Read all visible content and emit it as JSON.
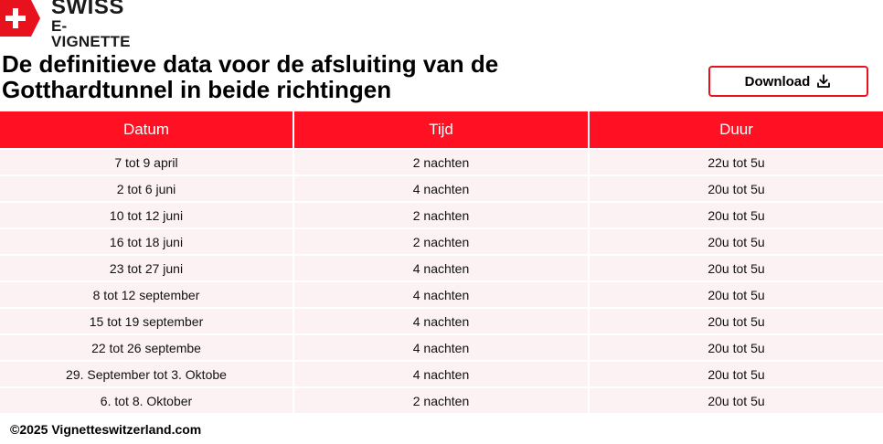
{
  "logo": {
    "line1": "SWISS",
    "line2": "E-VIGNETTE",
    "flag_color": "#e8121f"
  },
  "title": "De definitieve data voor de afsluiting van de Gotthardtunnel in beide richtingen",
  "download_button": {
    "label": "Download",
    "icon": "download-icon"
  },
  "table": {
    "headers": [
      "Datum",
      "Tijd",
      "Duur"
    ],
    "rows": [
      [
        "7 tot 9 april",
        "2 nachten",
        "22u tot 5u"
      ],
      [
        "2 tot 6 juni",
        "4 nachten",
        "20u tot 5u"
      ],
      [
        "10 tot 12 juni",
        "2 nachten",
        "20u tot 5u"
      ],
      [
        "16 tot 18 juni",
        "2 nachten",
        "20u tot 5u"
      ],
      [
        "23 tot 27 juni",
        "4 nachten",
        "20u tot 5u"
      ],
      [
        "8 tot 12 september",
        "4 nachten",
        "20u tot 5u"
      ],
      [
        "15 tot 19 september",
        "4 nachten",
        "20u tot 5u"
      ],
      [
        "22 tot 26 septembe",
        "4 nachten",
        "20u tot 5u"
      ],
      [
        "29. September tot 3. Oktobe",
        "4 nachten",
        "20u tot 5u"
      ],
      [
        "6. tot 8. Oktober",
        "2 nachten",
        "20u tot 5u"
      ]
    ]
  },
  "footer": "©2025 Vignetteswitzerland.com",
  "colors": {
    "accent": "#ff1022",
    "row_background": "#fdf2f3"
  }
}
